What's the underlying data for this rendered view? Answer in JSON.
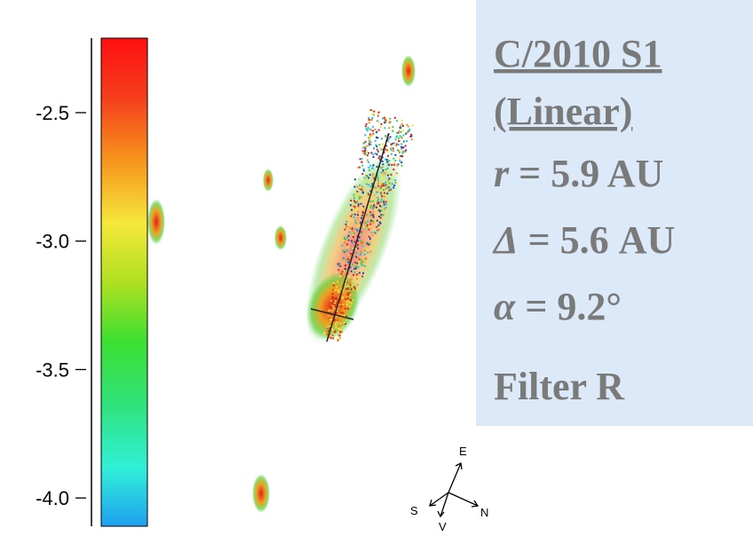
{
  "colorbar": {
    "range": [
      -4.11,
      -2.21
    ],
    "ticks": [
      {
        "value": -2.5,
        "label": "-2.5"
      },
      {
        "value": -3.0,
        "label": "-3.0"
      },
      {
        "value": -3.5,
        "label": "-3.5"
      },
      {
        "value": -4.0,
        "label": "-4.0"
      }
    ]
  },
  "panel": {
    "title": "C/2010 S1",
    "subtitle": "(Linear)",
    "lines": [
      {
        "symbol": "r",
        "text": " = 5.9 AU"
      },
      {
        "symbol": "Δ",
        "text": " = 5.6 AU"
      },
      {
        "symbol": "α",
        "text": " = 9.2°"
      },
      {
        "symbol": "",
        "text": "Filter R"
      }
    ]
  },
  "compass": {
    "east": "E",
    "north": "N",
    "sun": "S",
    "velocity": "V"
  }
}
